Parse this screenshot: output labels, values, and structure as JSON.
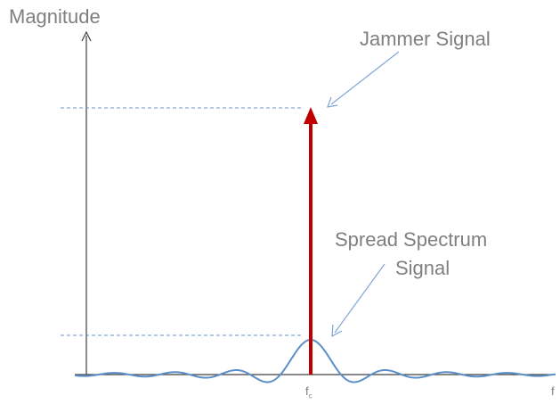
{
  "labels": {
    "y_axis": "Magnitude",
    "jammer": "Jammer Signal",
    "spread_line1": "Spread Spectrum",
    "spread_line2": "Signal",
    "fc_base": "f",
    "fc_sub": "c",
    "f_end": "f"
  },
  "colors": {
    "axis": "#404040",
    "jammer_arrow": "#c00000",
    "spread_curve": "#5b8fc9",
    "callout": "#7fa6d6",
    "dashed_guide": "#6f93c4",
    "text": "#7f7f7f"
  }
}
